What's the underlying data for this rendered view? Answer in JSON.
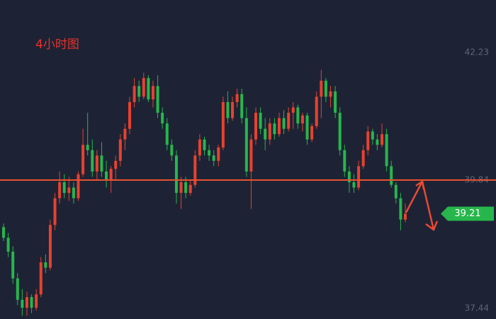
{
  "chart_data": {
    "type": "candlestick",
    "title": "4小时图",
    "up_color": "#e8412f",
    "down_color": "#27b64b",
    "ylim": [
      37.24,
      43.21
    ],
    "yticks": [
      37.44,
      39.84,
      42.23
    ],
    "hline": 39.84,
    "last_price": 39.21,
    "candles": [
      [
        38.96,
        39.03,
        38.7,
        38.76
      ],
      [
        38.76,
        38.85,
        38.4,
        38.5
      ],
      [
        38.5,
        38.6,
        37.9,
        38.0
      ],
      [
        38.0,
        38.1,
        37.5,
        37.6
      ],
      [
        37.6,
        37.8,
        37.3,
        37.45
      ],
      [
        37.45,
        37.75,
        37.3,
        37.65
      ],
      [
        37.65,
        37.7,
        37.35,
        37.45
      ],
      [
        37.45,
        37.8,
        37.4,
        37.7
      ],
      [
        37.7,
        38.4,
        37.65,
        38.3
      ],
      [
        38.3,
        38.45,
        38.1,
        38.2
      ],
      [
        38.2,
        39.1,
        38.15,
        39.0
      ],
      [
        39.0,
        39.6,
        38.9,
        39.5
      ],
      [
        39.5,
        40.0,
        39.4,
        39.8
      ],
      [
        39.8,
        39.95,
        39.5,
        39.6
      ],
      [
        39.6,
        39.9,
        39.45,
        39.7
      ],
      [
        39.7,
        39.8,
        39.4,
        39.5
      ],
      [
        39.5,
        40.0,
        39.45,
        39.95
      ],
      [
        39.95,
        40.8,
        39.9,
        40.5
      ],
      [
        40.5,
        41.1,
        40.3,
        40.4
      ],
      [
        40.4,
        40.6,
        39.9,
        40.0
      ],
      [
        40.0,
        40.4,
        39.85,
        40.3
      ],
      [
        40.3,
        40.55,
        39.9,
        40.0
      ],
      [
        40.0,
        40.2,
        39.7,
        39.85
      ],
      [
        39.85,
        40.1,
        39.6,
        40.05
      ],
      [
        40.05,
        40.3,
        39.85,
        40.2
      ],
      [
        40.2,
        40.7,
        40.1,
        40.6
      ],
      [
        40.6,
        40.9,
        40.4,
        40.8
      ],
      [
        40.8,
        41.4,
        40.7,
        41.3
      ],
      [
        41.3,
        41.75,
        41.2,
        41.6
      ],
      [
        41.6,
        41.7,
        41.3,
        41.4
      ],
      [
        41.4,
        41.85,
        41.35,
        41.75
      ],
      [
        41.75,
        41.8,
        41.3,
        41.35
      ],
      [
        41.35,
        41.7,
        41.2,
        41.6
      ],
      [
        41.6,
        41.8,
        41.0,
        41.1
      ],
      [
        41.1,
        41.2,
        40.8,
        40.9
      ],
      [
        40.9,
        41.0,
        40.4,
        40.5
      ],
      [
        40.5,
        40.6,
        40.2,
        40.3
      ],
      [
        40.3,
        40.4,
        39.4,
        39.6
      ],
      [
        39.6,
        39.9,
        39.3,
        39.8
      ],
      [
        39.8,
        39.9,
        39.5,
        39.6
      ],
      [
        39.6,
        39.85,
        39.55,
        39.75
      ],
      [
        39.75,
        40.4,
        39.7,
        40.3
      ],
      [
        40.3,
        40.7,
        40.2,
        40.6
      ],
      [
        40.6,
        40.65,
        40.3,
        40.4
      ],
      [
        40.4,
        40.5,
        40.2,
        40.3
      ],
      [
        40.3,
        40.4,
        40.1,
        40.2
      ],
      [
        40.2,
        40.5,
        40.1,
        40.45
      ],
      [
        40.45,
        41.4,
        40.4,
        41.3
      ],
      [
        41.3,
        41.5,
        40.9,
        41.0
      ],
      [
        41.0,
        41.4,
        40.95,
        41.3
      ],
      [
        41.3,
        41.55,
        41.2,
        41.45
      ],
      [
        41.45,
        41.55,
        40.9,
        41.0
      ],
      [
        41.0,
        41.2,
        39.9,
        40.0
      ],
      [
        40.0,
        40.7,
        39.3,
        40.6
      ],
      [
        40.6,
        41.2,
        40.5,
        41.1
      ],
      [
        41.1,
        41.2,
        40.7,
        40.8
      ],
      [
        40.8,
        41.0,
        40.4,
        40.6
      ],
      [
        40.6,
        41.0,
        40.5,
        40.9
      ],
      [
        40.9,
        41.0,
        40.6,
        40.7
      ],
      [
        40.7,
        41.1,
        40.65,
        41.0
      ],
      [
        41.0,
        41.15,
        40.7,
        40.8
      ],
      [
        40.8,
        41.2,
        40.75,
        41.1
      ],
      [
        41.1,
        41.3,
        40.8,
        41.2
      ],
      [
        41.2,
        41.25,
        40.8,
        40.9
      ],
      [
        40.9,
        41.1,
        40.75,
        41.05
      ],
      [
        41.05,
        41.1,
        40.5,
        40.6
      ],
      [
        40.6,
        40.9,
        40.55,
        40.85
      ],
      [
        40.85,
        41.5,
        40.8,
        41.4
      ],
      [
        41.4,
        41.9,
        41.0,
        41.7
      ],
      [
        41.7,
        41.75,
        41.3,
        41.4
      ],
      [
        41.4,
        41.6,
        41.2,
        41.5
      ],
      [
        41.5,
        41.6,
        41.0,
        41.1
      ],
      [
        41.1,
        41.2,
        40.3,
        40.4
      ],
      [
        40.4,
        40.5,
        39.9,
        40.0
      ],
      [
        40.0,
        40.1,
        39.6,
        39.8
      ],
      [
        39.8,
        39.95,
        39.6,
        39.7
      ],
      [
        39.7,
        40.2,
        39.65,
        40.1
      ],
      [
        40.1,
        40.5,
        40.05,
        40.4
      ],
      [
        40.4,
        40.85,
        40.3,
        40.75
      ],
      [
        40.75,
        40.8,
        40.5,
        40.6
      ],
      [
        40.6,
        40.7,
        40.4,
        40.5
      ],
      [
        40.5,
        40.9,
        40.45,
        40.7
      ],
      [
        40.7,
        40.8,
        40.0,
        40.1
      ],
      [
        40.1,
        40.2,
        39.7,
        39.75
      ],
      [
        39.75,
        39.8,
        39.4,
        39.5
      ],
      [
        39.5,
        39.6,
        38.9,
        39.1
      ],
      [
        39.1,
        39.4,
        39.05,
        39.21
      ]
    ]
  }
}
